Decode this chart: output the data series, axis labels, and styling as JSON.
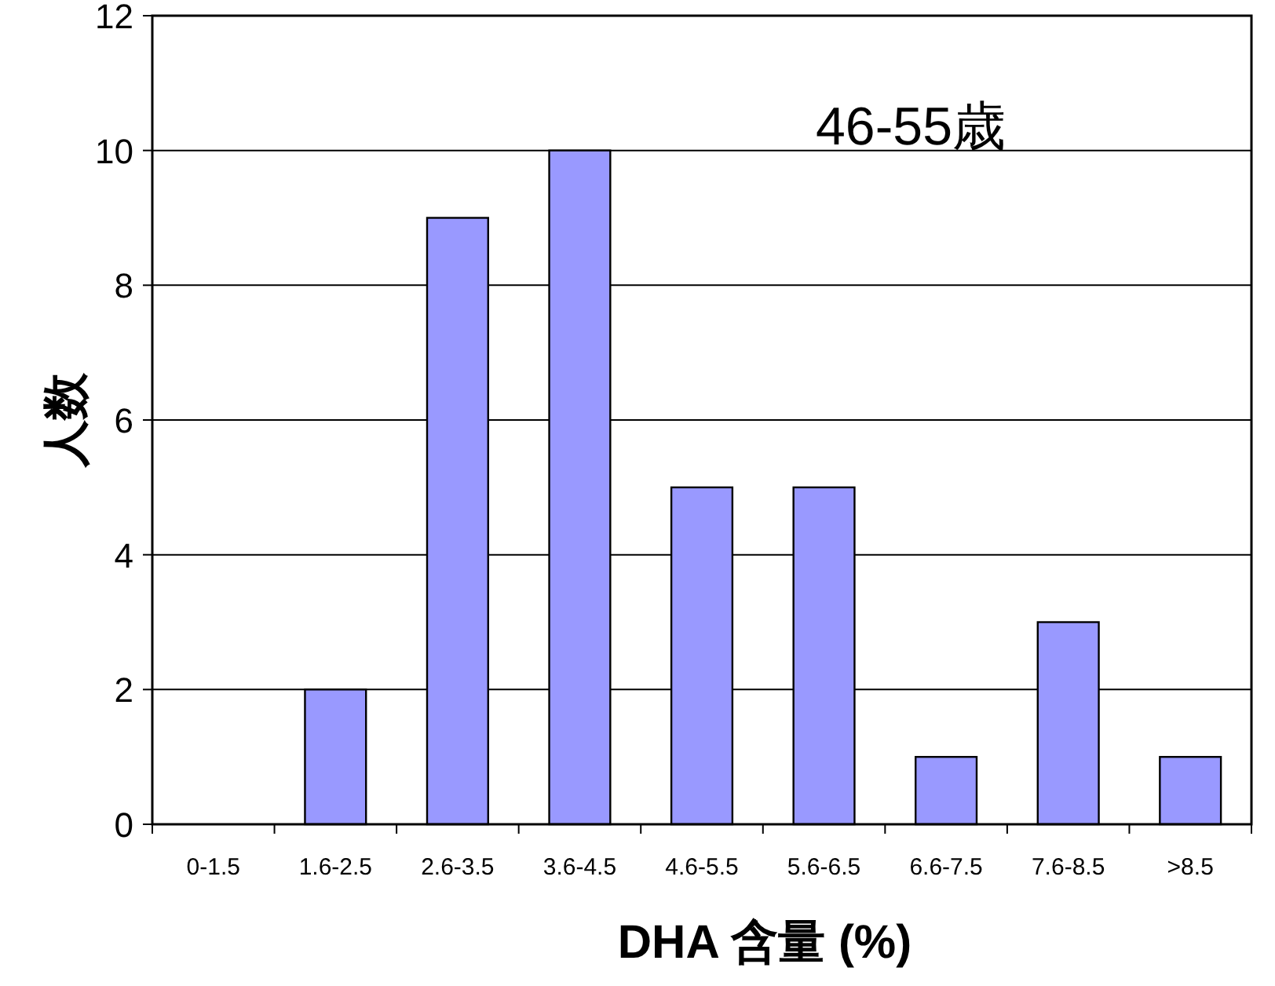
{
  "chart_data": {
    "type": "bar",
    "xlabel": "DHA 含量 (%)",
    "ylabel": "人数",
    "annotations": [
      "46-55歳"
    ],
    "categories": [
      "0-1.5",
      "1.6-2.5",
      "2.6-3.5",
      "3.6-4.5",
      "4.6-5.5",
      "5.6-6.5",
      "6.6-7.5",
      "7.6-8.5",
      ">8.5"
    ],
    "values": [
      0,
      2,
      9,
      10,
      5,
      5,
      1,
      3,
      1
    ],
    "color": "#9999ff",
    "ylim": [
      0,
      12
    ],
    "yticks": [
      0,
      2,
      4,
      6,
      8,
      10,
      12
    ],
    "grid": "y"
  }
}
